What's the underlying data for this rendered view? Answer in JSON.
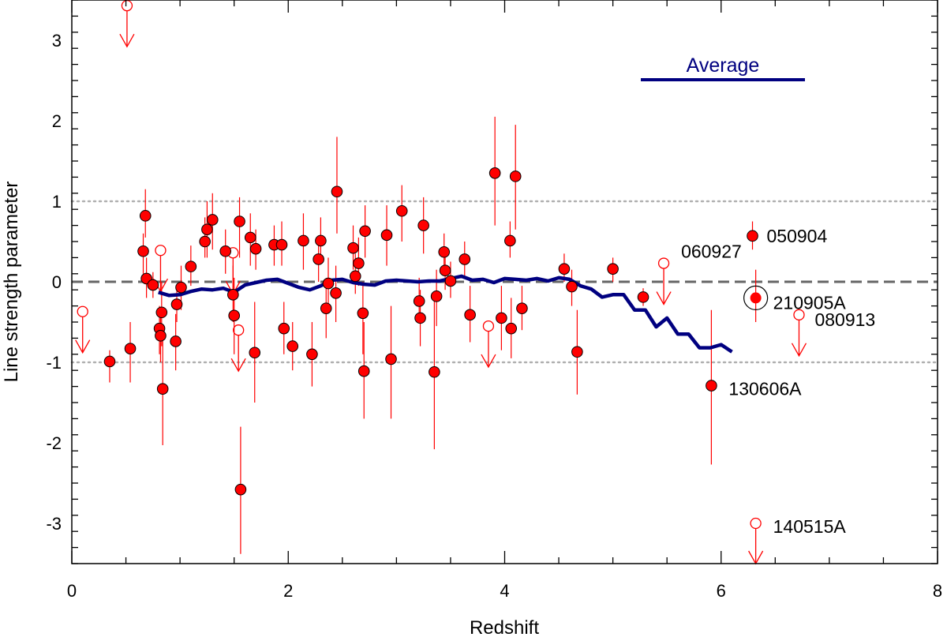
{
  "chart_data": {
    "type": "scatter",
    "xlabel": "Redshift",
    "ylabel": "Line strength parameter",
    "xlim": [
      0,
      8
    ],
    "ylim": [
      -3.5,
      3.5
    ],
    "x_ticks": [
      0,
      2,
      4,
      6,
      8
    ],
    "y_ticks": [
      -3,
      -2,
      -1,
      0,
      1,
      2,
      3
    ],
    "colors": {
      "points": "#ff0000",
      "average": "#000080",
      "zero_line": "#666666",
      "ref_lines": "#b0b0b0"
    },
    "reference_lines": [
      {
        "y": 1,
        "style": "dotted"
      },
      {
        "y": -1,
        "style": "dotted"
      },
      {
        "y": 0,
        "style": "dashed"
      }
    ],
    "legend": {
      "label": "Average",
      "placement": "top-right"
    },
    "detections": [
      {
        "x": 0.35,
        "y": -0.99,
        "lo": -1.25,
        "hi": -0.85
      },
      {
        "x": 0.54,
        "y": -0.83,
        "lo": -1.25,
        "hi": -0.5
      },
      {
        "x": 0.66,
        "y": 0.38,
        "lo": 0.1,
        "hi": 0.6
      },
      {
        "x": 0.68,
        "y": 0.82,
        "lo": 0.55,
        "hi": 1.15
      },
      {
        "x": 0.69,
        "y": 0.04,
        "lo": -0.2,
        "hi": 0.3
      },
      {
        "x": 0.75,
        "y": -0.04,
        "lo": -0.2,
        "hi": 0.12
      },
      {
        "x": 0.81,
        "y": -0.58,
        "lo": -0.9,
        "hi": -0.3
      },
      {
        "x": 0.82,
        "y": -0.67,
        "lo": -1.0,
        "hi": -0.4
      },
      {
        "x": 0.83,
        "y": -0.38,
        "lo": -0.8,
        "hi": 0.0
      },
      {
        "x": 0.84,
        "y": -1.33,
        "lo": -2.03,
        "hi": -0.6
      },
      {
        "x": 0.96,
        "y": -0.74,
        "lo": -1.1,
        "hi": -0.4
      },
      {
        "x": 0.97,
        "y": -0.28,
        "lo": -0.5,
        "hi": -0.05
      },
      {
        "x": 1.01,
        "y": -0.07,
        "lo": -0.35,
        "hi": 0.2
      },
      {
        "x": 1.1,
        "y": 0.19,
        "lo": -0.05,
        "hi": 0.45
      },
      {
        "x": 1.23,
        "y": 0.5,
        "lo": 0.3,
        "hi": 0.8
      },
      {
        "x": 1.25,
        "y": 0.65,
        "lo": 0.3,
        "hi": 1.0
      },
      {
        "x": 1.3,
        "y": 0.77,
        "lo": 0.4,
        "hi": 1.1
      },
      {
        "x": 1.42,
        "y": 0.38,
        "lo": 0.1,
        "hi": 0.65
      },
      {
        "x": 1.49,
        "y": -0.16,
        "lo": -0.5,
        "hi": 0.2
      },
      {
        "x": 1.5,
        "y": -0.42,
        "lo": -0.9,
        "hi": 0.05
      },
      {
        "x": 1.55,
        "y": 0.75,
        "lo": 0.3,
        "hi": 1.05
      },
      {
        "x": 1.56,
        "y": -2.58,
        "lo": -3.38,
        "hi": -1.8
      },
      {
        "x": 1.65,
        "y": 0.55,
        "lo": 0.2,
        "hi": 0.85
      },
      {
        "x": 1.69,
        "y": -0.88,
        "lo": -1.5,
        "hi": -0.25
      },
      {
        "x": 1.7,
        "y": 0.41,
        "lo": 0.15,
        "hi": 0.65
      },
      {
        "x": 1.87,
        "y": 0.46,
        "lo": 0.2,
        "hi": 0.7
      },
      {
        "x": 1.94,
        "y": 0.46,
        "lo": 0.2,
        "hi": 0.75
      },
      {
        "x": 1.96,
        "y": -0.58,
        "lo": -0.9,
        "hi": -0.25
      },
      {
        "x": 2.04,
        "y": -0.8,
        "lo": -1.1,
        "hi": -0.5
      },
      {
        "x": 2.14,
        "y": 0.51,
        "lo": 0.15,
        "hi": 0.85
      },
      {
        "x": 2.22,
        "y": -0.9,
        "lo": -1.3,
        "hi": -0.5
      },
      {
        "x": 2.28,
        "y": 0.28,
        "lo": 0.0,
        "hi": 0.55
      },
      {
        "x": 2.3,
        "y": 0.51,
        "lo": 0.25,
        "hi": 0.8
      },
      {
        "x": 2.35,
        "y": -0.33,
        "lo": -0.7,
        "hi": 0.0
      },
      {
        "x": 2.37,
        "y": -0.02,
        "lo": -0.3,
        "hi": 0.3
      },
      {
        "x": 2.44,
        "y": -0.14,
        "lo": -0.5,
        "hi": 0.2
      },
      {
        "x": 2.45,
        "y": 1.12,
        "lo": 0.6,
        "hi": 1.8
      },
      {
        "x": 2.6,
        "y": 0.42,
        "lo": 0.15,
        "hi": 0.7
      },
      {
        "x": 2.62,
        "y": 0.07,
        "lo": -0.15,
        "hi": 0.35
      },
      {
        "x": 2.65,
        "y": 0.23,
        "lo": -0.05,
        "hi": 0.55
      },
      {
        "x": 2.69,
        "y": -0.39,
        "lo": -0.9,
        "hi": 0.0
      },
      {
        "x": 2.7,
        "y": -1.11,
        "lo": -1.7,
        "hi": -0.5
      },
      {
        "x": 2.71,
        "y": 0.63,
        "lo": 0.3,
        "hi": 0.95
      },
      {
        "x": 2.91,
        "y": 0.58,
        "lo": 0.2,
        "hi": 0.95
      },
      {
        "x": 2.95,
        "y": -0.96,
        "lo": -1.7,
        "hi": -0.3
      },
      {
        "x": 3.05,
        "y": 0.88,
        "lo": 0.5,
        "hi": 1.2
      },
      {
        "x": 3.21,
        "y": -0.24,
        "lo": -0.5,
        "hi": 0.05
      },
      {
        "x": 3.22,
        "y": -0.45,
        "lo": -0.8,
        "hi": -0.1
      },
      {
        "x": 3.25,
        "y": 0.7,
        "lo": 0.35,
        "hi": 1.05
      },
      {
        "x": 3.35,
        "y": -1.12,
        "lo": -2.08,
        "hi": -0.15
      },
      {
        "x": 3.37,
        "y": -0.18,
        "lo": -0.55,
        "hi": 0.15
      },
      {
        "x": 3.44,
        "y": 0.37,
        "lo": 0.15,
        "hi": 0.6
      },
      {
        "x": 3.45,
        "y": 0.14,
        "lo": -0.1,
        "hi": 0.4
      },
      {
        "x": 3.5,
        "y": 0.01,
        "lo": -0.2,
        "hi": 0.25
      },
      {
        "x": 3.63,
        "y": 0.28,
        "lo": 0.05,
        "hi": 0.5
      },
      {
        "x": 3.68,
        "y": -0.41,
        "lo": -0.75,
        "hi": -0.05
      },
      {
        "x": 3.91,
        "y": 1.35,
        "lo": 0.7,
        "hi": 2.05
      },
      {
        "x": 3.97,
        "y": -0.45,
        "lo": -0.85,
        "hi": -0.05
      },
      {
        "x": 4.05,
        "y": 0.51,
        "lo": 0.3,
        "hi": 0.75
      },
      {
        "x": 4.06,
        "y": -0.58,
        "lo": -0.95,
        "hi": -0.2
      },
      {
        "x": 4.1,
        "y": 1.31,
        "lo": 0.65,
        "hi": 1.95
      },
      {
        "x": 4.16,
        "y": -0.33,
        "lo": -0.6,
        "hi": -0.05
      },
      {
        "x": 4.55,
        "y": 0.16,
        "lo": 0.0,
        "hi": 0.35
      },
      {
        "x": 4.62,
        "y": -0.06,
        "lo": -0.3,
        "hi": 0.15
      },
      {
        "x": 4.67,
        "y": -0.87,
        "lo": -1.4,
        "hi": -0.35
      },
      {
        "x": 5.0,
        "y": 0.16,
        "lo": 0.0,
        "hi": 0.3
      },
      {
        "x": 5.28,
        "y": -0.19,
        "lo": -0.3,
        "hi": -0.08
      },
      {
        "x": 5.91,
        "y": -1.29,
        "lo": -2.27,
        "hi": -0.35
      },
      {
        "x": 6.29,
        "y": 0.57,
        "lo": 0.4,
        "hi": 0.75
      },
      {
        "x": 6.32,
        "y": -0.2,
        "lo": -0.5,
        "hi": 0.15,
        "highlight": true
      }
    ],
    "upper_limits": [
      {
        "x": 0.1,
        "y": -0.37
      },
      {
        "x": 0.51,
        "y": 3.43
      },
      {
        "x": 0.82,
        "y": 0.39
      },
      {
        "x": 1.49,
        "y": 0.36
      },
      {
        "x": 1.54,
        "y": -0.6
      },
      {
        "x": 3.85,
        "y": -0.55
      },
      {
        "x": 5.47,
        "y": 0.23
      },
      {
        "x": 6.32,
        "y": -3.0
      },
      {
        "x": 6.72,
        "y": -0.41
      }
    ],
    "average": {
      "x": [
        0.8,
        0.9,
        1.0,
        1.1,
        1.2,
        1.3,
        1.4,
        1.5,
        1.6,
        1.7,
        1.8,
        1.9,
        2.0,
        2.1,
        2.2,
        2.3,
        2.4,
        2.5,
        2.6,
        2.7,
        2.8,
        2.9,
        3.0,
        3.1,
        3.2,
        3.3,
        3.4,
        3.5,
        3.6,
        3.7,
        3.8,
        3.9,
        4.0,
        4.1,
        4.2,
        4.3,
        4.4,
        4.5,
        4.6,
        4.7,
        4.8,
        4.9,
        5.0,
        5.1,
        5.2,
        5.3,
        5.4,
        5.5,
        5.6,
        5.7,
        5.8,
        5.9,
        6.0,
        6.1
      ],
      "y": [
        -0.13,
        -0.17,
        -0.16,
        -0.12,
        -0.09,
        -0.1,
        -0.08,
        -0.13,
        -0.04,
        -0.01,
        0.02,
        0.03,
        -0.02,
        -0.07,
        -0.1,
        -0.05,
        0.02,
        0.03,
        -0.01,
        -0.03,
        -0.04,
        0.01,
        0.02,
        0.01,
        0.0,
        0.01,
        0.01,
        0.04,
        0.07,
        0.02,
        0.03,
        -0.01,
        0.04,
        0.03,
        0.02,
        0.04,
        0.01,
        0.05,
        0.03,
        -0.05,
        -0.09,
        -0.19,
        -0.16,
        -0.16,
        -0.35,
        -0.35,
        -0.56,
        -0.45,
        -0.65,
        -0.65,
        -0.82,
        -0.82,
        -0.78,
        -0.87
      ]
    },
    "annotations": [
      {
        "label": "050904",
        "x": 6.29,
        "y": 0.57
      },
      {
        "label": "060927",
        "x": 5.47,
        "y": 0.23
      },
      {
        "label": "210905A",
        "x": 6.32,
        "y": -0.2
      },
      {
        "label": "080913",
        "x": 6.72,
        "y": -0.41
      },
      {
        "label": "130606A",
        "x": 5.91,
        "y": -1.29
      },
      {
        "label": "140515A",
        "x": 6.32,
        "y": -3.0
      }
    ]
  }
}
